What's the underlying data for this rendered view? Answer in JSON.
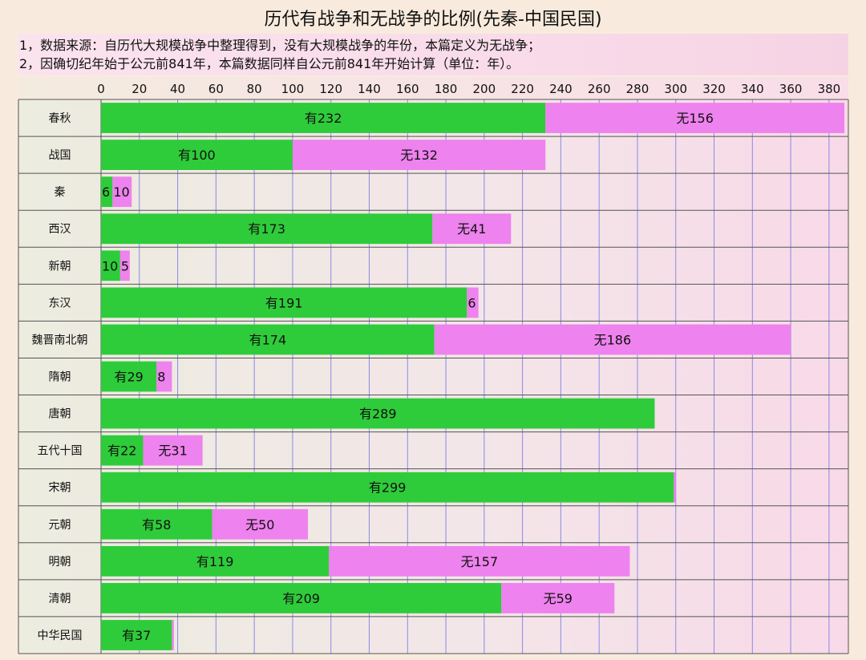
{
  "chart_data": {
    "type": "bar",
    "orientation": "horizontal",
    "stacked": true,
    "title": "历代有战争和无战争的比例(先秦-中国民国)",
    "notes": [
      "1，数据来源：自历代大规模战争中整理得到，没有大规模战争的年份，本篇定义为无战争；",
      "2，因确切纪年始于公元前841年，本篇数据同样自公元前841年开始计算（单位：年）。"
    ],
    "xlim": [
      0,
      388
    ],
    "xticks": [
      0,
      20,
      40,
      60,
      80,
      100,
      120,
      140,
      160,
      180,
      200,
      220,
      240,
      260,
      280,
      300,
      320,
      340,
      360,
      380
    ],
    "grid": "vertical",
    "axis_position": "top",
    "categories": [
      "春秋",
      "战国",
      "秦",
      "西汉",
      "新朝",
      "东汉",
      "魏晋南北朝",
      "隋朝",
      "唐朝",
      "五代十国",
      "宋朝",
      "元朝",
      "明朝",
      "清朝",
      "中华民国"
    ],
    "series": [
      {
        "color": "#2ecc3a",
        "values": [
          232,
          100,
          6,
          173,
          10,
          191,
          174,
          29,
          289,
          22,
          299,
          58,
          119,
          209,
          37
        ],
        "labels": [
          "有232",
          "有100",
          "6",
          "有173",
          "10",
          "有191",
          "有174",
          "有29",
          "有289",
          "有22",
          "有299",
          "有58",
          "有119",
          "有209",
          "有37"
        ]
      },
      {
        "color": "#ee82ee",
        "values": [
          156,
          132,
          10,
          41,
          5,
          6,
          186,
          8,
          0,
          31,
          1,
          50,
          157,
          59,
          1
        ],
        "labels": [
          "无156",
          "无132",
          "10",
          "无41",
          "5",
          "6",
          "无186",
          "8",
          "",
          "无31",
          "",
          "无50",
          "无157",
          "无59",
          ""
        ]
      }
    ]
  }
}
